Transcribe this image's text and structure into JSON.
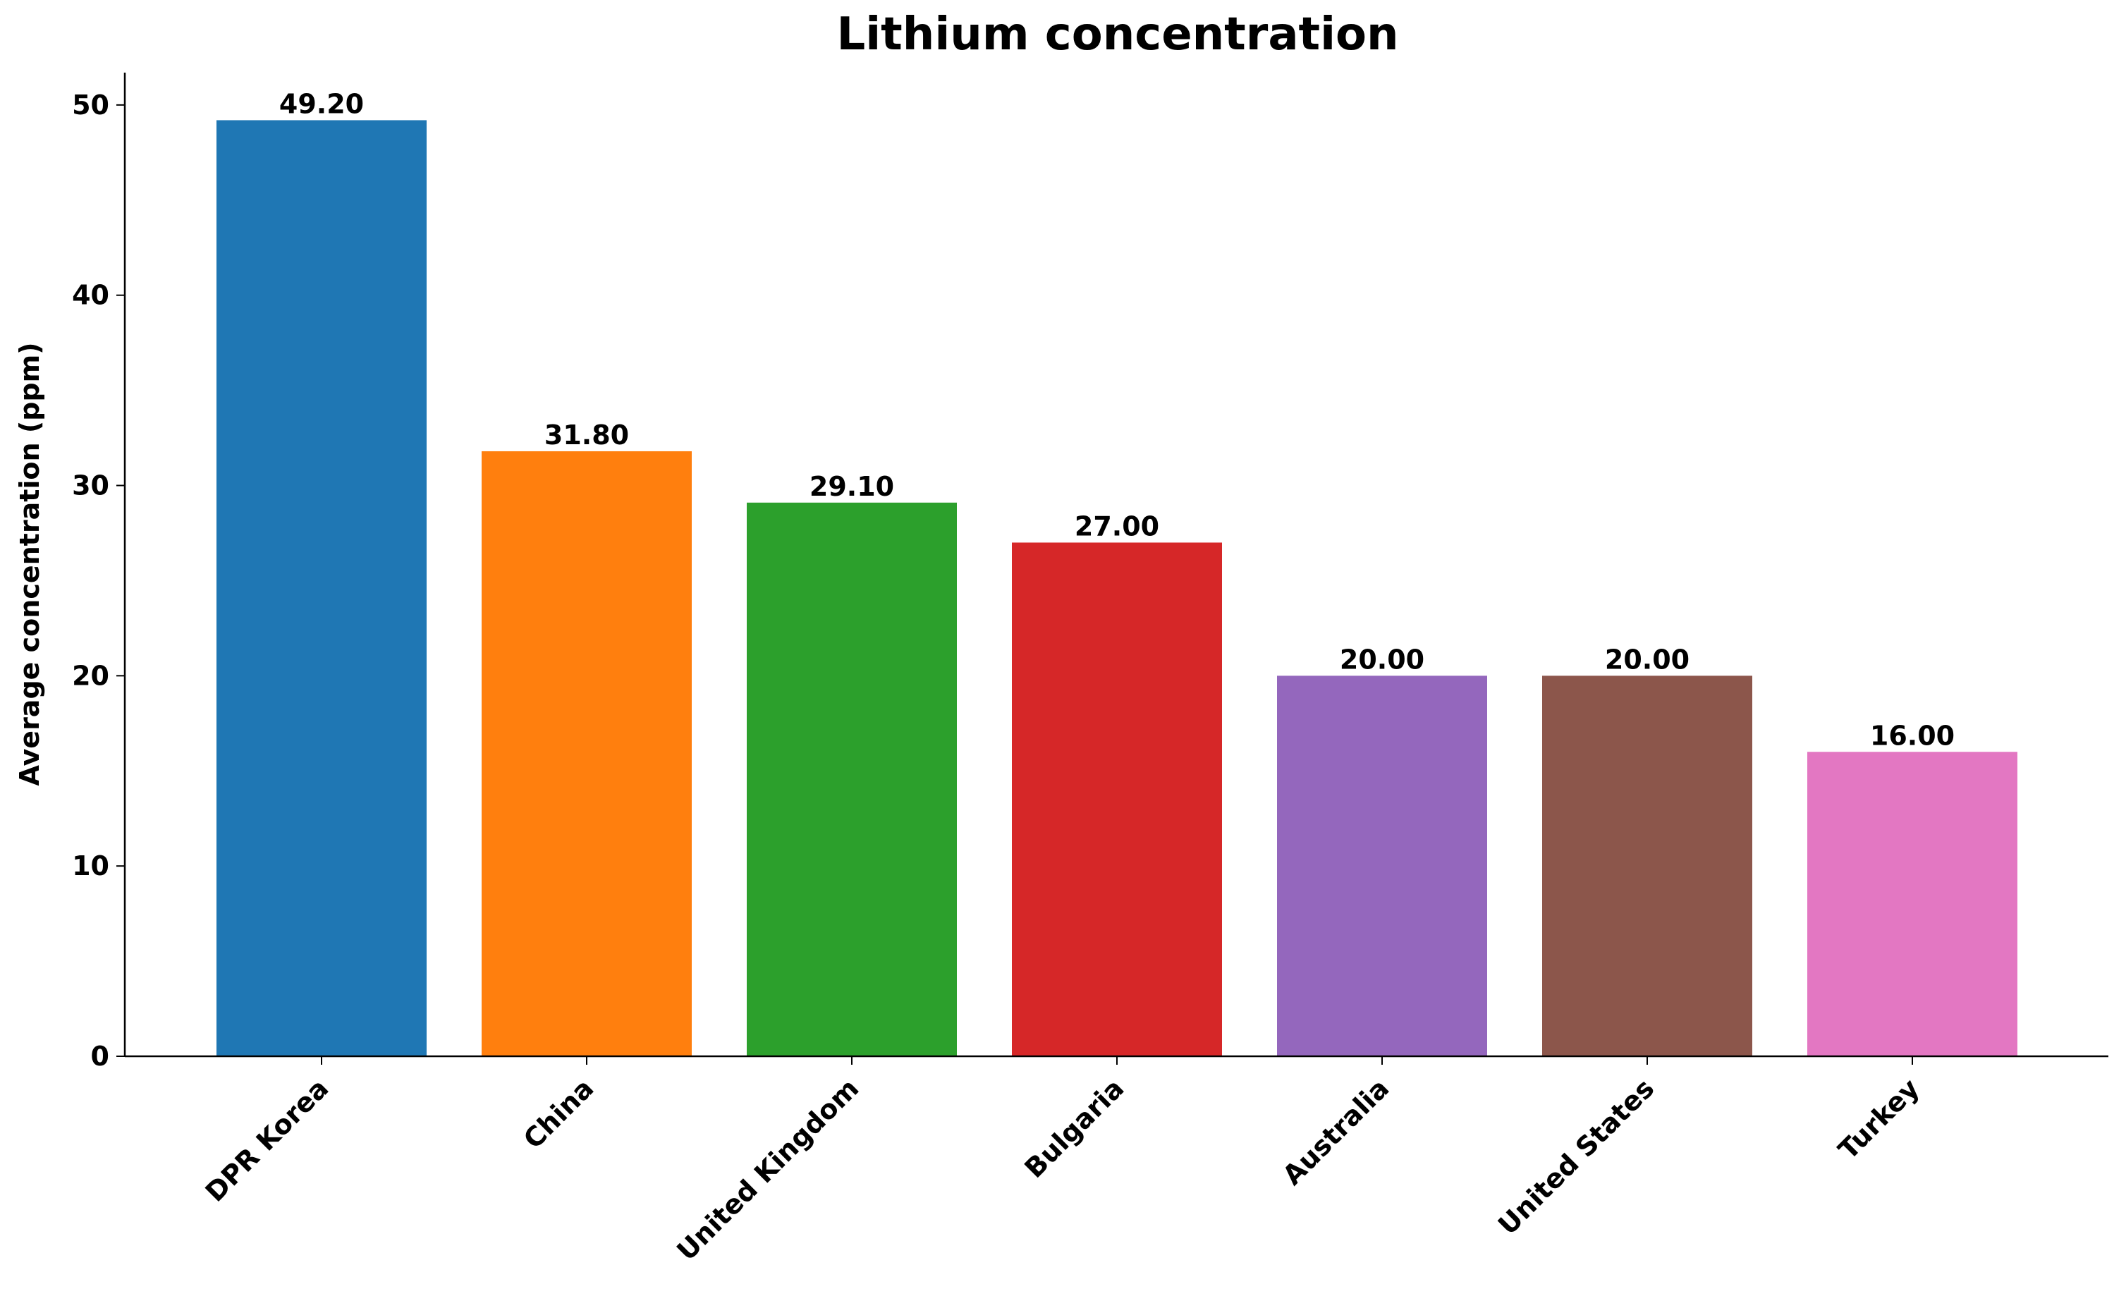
{
  "chart_data": {
    "type": "bar",
    "title": "Lithium concentration",
    "y_label": "Average concentration (ppm)",
    "categories": [
      "DPR Korea",
      "China",
      "United Kingdom",
      "Bulgaria",
      "Australia",
      "United States",
      "Turkey"
    ],
    "values": [
      49.2,
      31.8,
      29.1,
      27.0,
      20.0,
      20.0,
      16.0
    ],
    "value_labels": [
      "49.20",
      "31.80",
      "29.10",
      "27.00",
      "20.00",
      "20.00",
      "16.00"
    ],
    "colors": [
      "#1f77b4",
      "#ff7f0e",
      "#2ca02c",
      "#d62728",
      "#9467bd",
      "#8c564b",
      "#e377c2"
    ],
    "ylim": [
      0,
      51.7
    ],
    "yticks": [
      0,
      10,
      20,
      30,
      40,
      50
    ],
    "grid": false
  }
}
